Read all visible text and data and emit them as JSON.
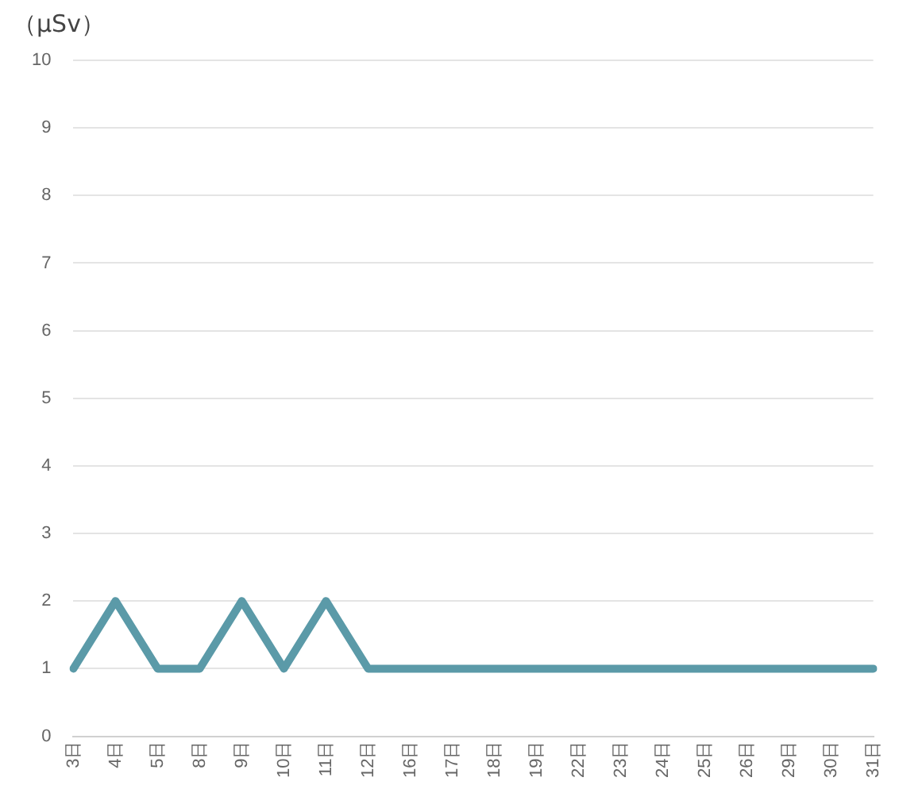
{
  "chart_data": {
    "type": "line",
    "ylabel": "（μSv）",
    "categories": [
      "3日",
      "4日",
      "5日",
      "8日",
      "9日",
      "10日",
      "11日",
      "12日",
      "16日",
      "17日",
      "18日",
      "19日",
      "22日",
      "23日",
      "24日",
      "25日",
      "26日",
      "29日",
      "30日",
      "31日"
    ],
    "series": [
      {
        "color": "#5b9aa8",
        "values": [
          1,
          2,
          1,
          1,
          2,
          1,
          2,
          1,
          1,
          1,
          1,
          1,
          1,
          1,
          1,
          1,
          1,
          1,
          1,
          1
        ]
      }
    ],
    "ylim": [
      0,
      10
    ],
    "yticks": [
      0,
      1,
      2,
      3,
      4,
      5,
      6,
      7,
      8,
      9,
      10
    ],
    "grid": "y",
    "legend": false,
    "marker": "none",
    "line_style": "solid"
  }
}
